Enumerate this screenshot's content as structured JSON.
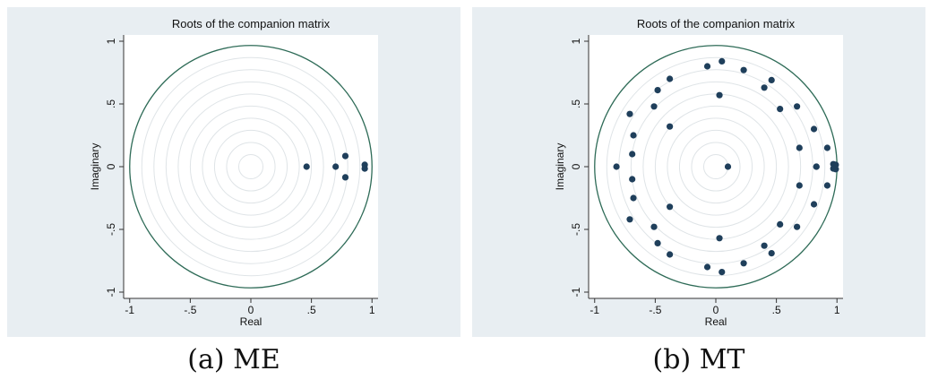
{
  "chart_data": [
    {
      "type": "scatter",
      "title": "Roots of the companion matrix",
      "xlabel": "Real",
      "ylabel": "Imaginary",
      "xlim": [
        -1.05,
        1.05
      ],
      "ylim": [
        -1.05,
        1.05
      ],
      "x_ticks": [
        -1,
        -0.5,
        0,
        0.5,
        1
      ],
      "x_tick_labels": [
        "-1",
        "-.5",
        "0",
        ".5",
        "1"
      ],
      "y_ticks": [
        -1,
        -0.5,
        0,
        0.5,
        1
      ],
      "y_tick_labels": [
        "-1",
        "-.5",
        "0",
        ".5",
        "1"
      ],
      "unit_circle": true,
      "grid": "concentric circles",
      "x": [
        0.46,
        0.7,
        0.78,
        0.78,
        0.94,
        0.94
      ],
      "y": [
        0.0,
        0.0,
        0.085,
        -0.085,
        0.015,
        -0.015
      ],
      "colors": {
        "points": "#1f3f5b",
        "circle": "#2e6b57",
        "grid": "#dfe4e7",
        "axis": "#333333"
      }
    },
    {
      "type": "scatter",
      "title": "Roots of the companion matrix",
      "xlabel": "Real",
      "ylabel": "Imaginary",
      "xlim": [
        -1.05,
        1.05
      ],
      "ylim": [
        -1.05,
        1.05
      ],
      "x_ticks": [
        -1,
        -0.5,
        0,
        0.5,
        1
      ],
      "x_tick_labels": [
        "-1",
        "-.5",
        "0",
        ".5",
        "1"
      ],
      "y_ticks": [
        -1,
        -0.5,
        0,
        0.5,
        1
      ],
      "y_tick_labels": [
        "-1",
        "-.5",
        "0",
        ".5",
        "1"
      ],
      "unit_circle": true,
      "grid": "concentric circles",
      "x": [
        0.1,
        -0.82,
        0.97,
        0.99,
        0.99,
        0.97,
        0.05,
        0.05,
        -0.07,
        -0.07,
        0.23,
        0.23,
        0.46,
        0.46,
        0.4,
        0.4,
        0.67,
        0.67,
        0.81,
        0.81,
        0.92,
        0.92,
        0.69,
        0.69,
        0.83,
        0.83,
        0.53,
        0.53,
        0.03,
        0.03,
        -0.38,
        -0.38,
        -0.38,
        -0.38,
        -0.48,
        -0.48,
        -0.51,
        -0.51,
        -0.71,
        -0.71,
        -0.68,
        -0.68,
        -0.69,
        -0.69
      ],
      "y": [
        0.0,
        0.0,
        0.02,
        -0.02,
        0.015,
        -0.015,
        0.84,
        -0.84,
        0.8,
        -0.8,
        0.77,
        -0.77,
        0.69,
        -0.69,
        0.63,
        -0.63,
        0.48,
        -0.48,
        0.3,
        -0.3,
        0.15,
        -0.15,
        0.15,
        -0.15,
        0.0,
        0.0,
        0.46,
        -0.46,
        0.57,
        -0.57,
        0.7,
        -0.7,
        0.32,
        -0.32,
        0.61,
        -0.61,
        0.48,
        -0.48,
        0.42,
        -0.42,
        0.25,
        -0.25,
        0.1,
        -0.1
      ],
      "colors": {
        "points": "#1f3f5b",
        "circle": "#2e6b57",
        "grid": "#dfe4e7",
        "axis": "#333333"
      }
    }
  ],
  "captions": [
    "(a) ME",
    "(b) MT"
  ]
}
